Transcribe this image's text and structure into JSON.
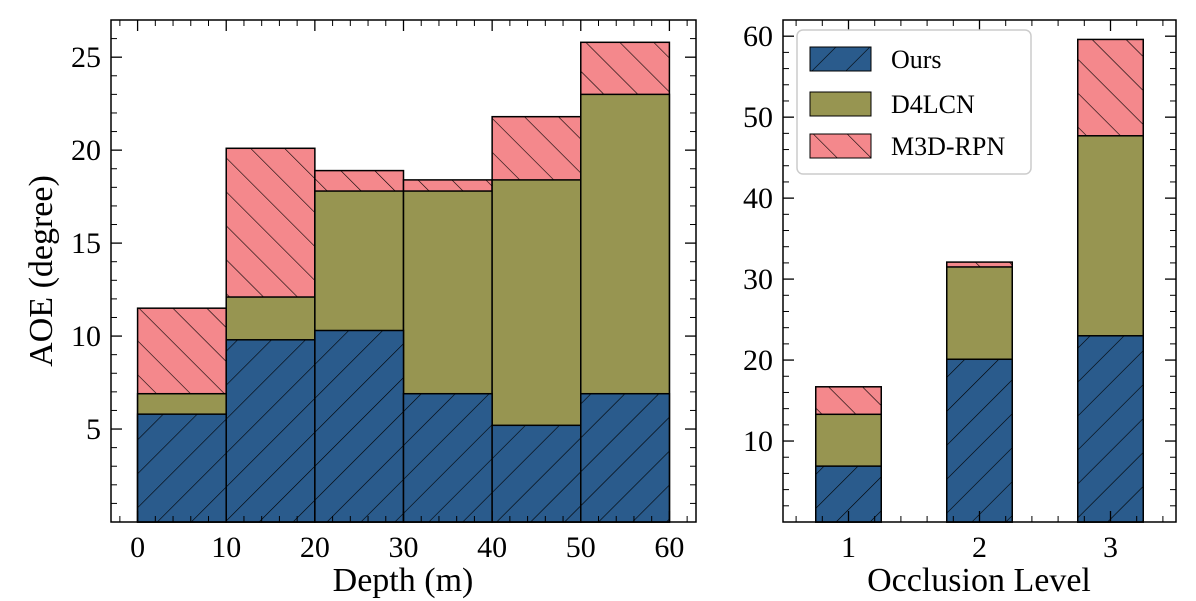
{
  "colors": {
    "ours": "#2a5b8c",
    "d4lcn": "#979551",
    "m3d": "#f4888c",
    "edge": "#000000"
  },
  "chart_data": [
    {
      "type": "bar",
      "stacking": "overlay",
      "title": "",
      "xlabel": "Depth (m)",
      "ylabel": "AOE (degree)",
      "bins": [
        [
          0,
          10
        ],
        [
          10,
          20
        ],
        [
          20,
          30
        ],
        [
          30,
          40
        ],
        [
          40,
          50
        ],
        [
          50,
          60
        ]
      ],
      "xlim": [
        -3,
        63
      ],
      "ylim": [
        0,
        27
      ],
      "xticks": [
        0,
        10,
        20,
        30,
        40,
        50,
        60
      ],
      "yticks": [
        5,
        10,
        15,
        20,
        25
      ],
      "series": [
        {
          "name": "M3D-RPN",
          "values": [
            11.5,
            20.1,
            18.9,
            18.4,
            21.8,
            25.8
          ]
        },
        {
          "name": "D4LCN",
          "values": [
            6.9,
            12.1,
            17.8,
            17.8,
            18.4,
            23.0
          ]
        },
        {
          "name": "Ours",
          "values": [
            5.8,
            9.8,
            10.3,
            6.9,
            5.2,
            6.9
          ]
        }
      ]
    },
    {
      "type": "bar",
      "stacking": "overlay",
      "title": "",
      "xlabel": "Occlusion Level",
      "ylabel": "",
      "categories": [
        "1",
        "2",
        "3"
      ],
      "xlim": [
        0.5,
        3.5
      ],
      "ylim": [
        0,
        62
      ],
      "yticks": [
        10,
        20,
        30,
        40,
        50,
        60
      ],
      "legend": "top-left",
      "series": [
        {
          "name": "M3D-RPN",
          "values": [
            16.7,
            32.1,
            59.6
          ]
        },
        {
          "name": "D4LCN",
          "values": [
            13.3,
            31.5,
            47.7
          ]
        },
        {
          "name": "Ours",
          "values": [
            6.9,
            20.1,
            23.0
          ]
        }
      ]
    }
  ],
  "legend": {
    "entries": [
      {
        "label": "Ours",
        "key": "ours"
      },
      {
        "label": "D4LCN",
        "key": "d4lcn"
      },
      {
        "label": "M3D-RPN",
        "key": "m3d"
      }
    ]
  }
}
